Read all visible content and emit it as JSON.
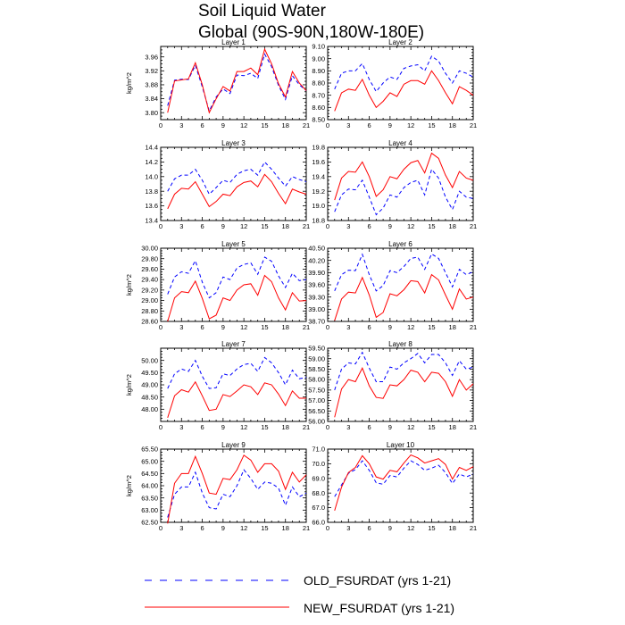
{
  "title_line1": "Soil Liquid Water",
  "title_line2": "Global (90S-90N,180W-180E)",
  "legend": [
    {
      "label": "OLD_FSURDAT (yrs 1-21)",
      "color": "#0000ff",
      "dashed": true
    },
    {
      "label": "NEW_FSURDAT (yrs 1-21)",
      "color": "#ff0000",
      "dashed": false
    }
  ],
  "chart_data": [
    {
      "type": "line",
      "title": "Layer 1",
      "ylabel": "kg/m^2",
      "xlim": [
        0,
        21
      ],
      "ylim": [
        3.78,
        3.99
      ],
      "xticks": [
        "0",
        "3",
        "6",
        "9",
        "12",
        "15",
        "18",
        "21"
      ],
      "yticks": [
        "3.80",
        "3.84",
        "3.88",
        "3.92",
        "3.96"
      ],
      "x": [
        1,
        2,
        3,
        4,
        5,
        6,
        7,
        8,
        9,
        10,
        11,
        12,
        13,
        14,
        15,
        16,
        17,
        18,
        19,
        20,
        21
      ],
      "series": [
        {
          "values": [
            3.82,
            3.893,
            3.896,
            3.895,
            3.936,
            3.874,
            3.805,
            3.845,
            3.868,
            3.855,
            3.908,
            3.906,
            3.913,
            3.898,
            3.968,
            3.932,
            3.878,
            3.838,
            3.906,
            3.88,
            3.863
          ]
        },
        {
          "values": [
            3.8,
            3.891,
            3.894,
            3.897,
            3.943,
            3.88,
            3.8,
            3.84,
            3.875,
            3.862,
            3.918,
            3.918,
            3.928,
            3.909,
            3.982,
            3.94,
            3.883,
            3.845,
            3.918,
            3.885,
            3.863
          ]
        }
      ]
    },
    {
      "type": "line",
      "title": "Layer 2",
      "ylabel": "",
      "xlim": [
        0,
        21
      ],
      "ylim": [
        8.5,
        9.1
      ],
      "xticks": [
        "0",
        "3",
        "6",
        "9",
        "12",
        "15",
        "18",
        "21"
      ],
      "yticks": [
        "8.50",
        "8.60",
        "8.70",
        "8.80",
        "8.90",
        "9.00",
        "9.10"
      ],
      "x": [
        1,
        2,
        3,
        4,
        5,
        6,
        7,
        8,
        9,
        10,
        11,
        12,
        13,
        14,
        15,
        16,
        17,
        18,
        19,
        20,
        21
      ],
      "series": [
        {
          "values": [
            8.75,
            8.88,
            8.9,
            8.9,
            8.96,
            8.83,
            8.73,
            8.8,
            8.85,
            8.83,
            8.92,
            8.94,
            8.95,
            8.9,
            9.02,
            8.98,
            8.88,
            8.8,
            8.9,
            8.88,
            8.85
          ]
        },
        {
          "values": [
            8.57,
            8.72,
            8.75,
            8.74,
            8.83,
            8.7,
            8.6,
            8.65,
            8.72,
            8.69,
            8.79,
            8.82,
            8.82,
            8.79,
            8.9,
            8.82,
            8.72,
            8.63,
            8.77,
            8.74,
            8.7
          ]
        }
      ]
    },
    {
      "type": "line",
      "title": "Layer 3",
      "ylabel": "",
      "xlim": [
        0,
        21
      ],
      "ylim": [
        13.4,
        14.4
      ],
      "xticks": [
        "0",
        "3",
        "6",
        "9",
        "12",
        "15",
        "18",
        "21"
      ],
      "yticks": [
        "13.4",
        "13.6",
        "13.8",
        "14.0",
        "14.2",
        "14.4"
      ],
      "x": [
        1,
        2,
        3,
        4,
        5,
        6,
        7,
        8,
        9,
        10,
        11,
        12,
        13,
        14,
        15,
        16,
        17,
        18,
        19,
        20,
        21
      ],
      "series": [
        {
          "values": [
            13.8,
            13.97,
            14.02,
            14.02,
            14.1,
            13.95,
            13.76,
            13.85,
            13.95,
            13.92,
            14.03,
            14.08,
            14.1,
            14.02,
            14.2,
            14.1,
            13.98,
            13.87,
            14.0,
            13.96,
            13.93
          ]
        },
        {
          "values": [
            13.56,
            13.76,
            13.84,
            13.83,
            13.93,
            13.76,
            13.59,
            13.66,
            13.76,
            13.74,
            13.86,
            13.92,
            13.94,
            13.86,
            14.03,
            13.93,
            13.77,
            13.63,
            13.83,
            13.79,
            13.76
          ]
        }
      ]
    },
    {
      "type": "line",
      "title": "Layer 4",
      "ylabel": "",
      "xlim": [
        0,
        21
      ],
      "ylim": [
        18.8,
        19.8
      ],
      "xticks": [
        "0",
        "3",
        "6",
        "9",
        "12",
        "15",
        "18",
        "21"
      ],
      "yticks": [
        "18.8",
        "19.0",
        "19.2",
        "19.4",
        "19.6",
        "19.8"
      ],
      "x": [
        1,
        2,
        3,
        4,
        5,
        6,
        7,
        8,
        9,
        10,
        11,
        12,
        13,
        14,
        15,
        16,
        17,
        18,
        19,
        20,
        21
      ],
      "series": [
        {
          "values": [
            18.92,
            19.15,
            19.23,
            19.22,
            19.35,
            19.12,
            18.88,
            18.97,
            19.15,
            19.12,
            19.25,
            19.32,
            19.35,
            19.15,
            19.5,
            19.38,
            19.12,
            18.95,
            19.2,
            19.12,
            19.1
          ]
        },
        {
          "values": [
            19.08,
            19.38,
            19.47,
            19.46,
            19.6,
            19.4,
            19.13,
            19.22,
            19.4,
            19.37,
            19.5,
            19.59,
            19.62,
            19.45,
            19.72,
            19.65,
            19.42,
            19.25,
            19.47,
            19.38,
            19.35
          ]
        }
      ]
    },
    {
      "type": "line",
      "title": "Layer 5",
      "ylabel": "kg/m^2",
      "xlim": [
        0,
        21
      ],
      "ylim": [
        28.6,
        30.0
      ],
      "xticks": [
        "0",
        "3",
        "6",
        "9",
        "12",
        "15",
        "18",
        "21"
      ],
      "yticks": [
        "28.60",
        "28.80",
        "29.00",
        "29.20",
        "29.40",
        "29.60",
        "29.80",
        "30.00"
      ],
      "x": [
        1,
        2,
        3,
        4,
        5,
        6,
        7,
        8,
        9,
        10,
        11,
        12,
        13,
        14,
        15,
        16,
        17,
        18,
        19,
        20,
        21
      ],
      "series": [
        {
          "values": [
            29.12,
            29.45,
            29.55,
            29.52,
            29.76,
            29.35,
            29.05,
            29.15,
            29.45,
            29.4,
            29.62,
            29.69,
            29.72,
            29.5,
            29.83,
            29.75,
            29.47,
            29.25,
            29.52,
            29.38,
            29.4
          ]
        },
        {
          "values": [
            28.6,
            29.05,
            29.17,
            29.15,
            29.37,
            29.04,
            28.65,
            28.72,
            29.05,
            29.0,
            29.2,
            29.3,
            29.32,
            29.1,
            29.48,
            29.36,
            29.05,
            28.82,
            29.15,
            28.99,
            29.0
          ]
        }
      ]
    },
    {
      "type": "line",
      "title": "Layer 6",
      "ylabel": "",
      "xlim": [
        0,
        21
      ],
      "ylim": [
        38.7,
        40.5
      ],
      "xticks": [
        "0",
        "3",
        "6",
        "9",
        "12",
        "15",
        "18",
        "21"
      ],
      "yticks": [
        "38.70",
        "39.00",
        "39.30",
        "39.60",
        "39.90",
        "40.20",
        "40.50"
      ],
      "x": [
        1,
        2,
        3,
        4,
        5,
        6,
        7,
        8,
        9,
        10,
        11,
        12,
        13,
        14,
        15,
        16,
        17,
        18,
        19,
        20,
        21
      ],
      "series": [
        {
          "values": [
            39.45,
            39.85,
            39.96,
            39.95,
            40.35,
            39.85,
            39.45,
            39.58,
            39.95,
            39.9,
            40.05,
            40.25,
            40.28,
            39.98,
            40.36,
            40.25,
            39.9,
            39.55,
            39.98,
            39.85,
            39.92
          ]
        },
        {
          "values": [
            38.72,
            39.25,
            39.42,
            39.4,
            39.78,
            39.35,
            38.8,
            38.92,
            39.38,
            39.33,
            39.48,
            39.7,
            39.68,
            39.4,
            39.85,
            39.72,
            39.35,
            39.0,
            39.5,
            39.25,
            39.3
          ]
        }
      ]
    },
    {
      "type": "line",
      "title": "Layer 7",
      "ylabel": "kg/m^2",
      "xlim": [
        0,
        21
      ],
      "ylim": [
        47.5,
        50.5
      ],
      "xticks": [
        "0",
        "3",
        "6",
        "9",
        "12",
        "15",
        "18",
        "21"
      ],
      "yticks": [
        "48.00",
        "48.50",
        "49.00",
        "49.50",
        "50.00"
      ],
      "x": [
        1,
        2,
        3,
        4,
        5,
        6,
        7,
        8,
        9,
        10,
        11,
        12,
        13,
        14,
        15,
        16,
        17,
        18,
        19,
        20,
        21
      ],
      "series": [
        {
          "values": [
            48.85,
            49.45,
            49.65,
            49.55,
            50.0,
            49.35,
            48.85,
            48.88,
            49.45,
            49.38,
            49.65,
            49.83,
            49.88,
            49.55,
            50.12,
            49.9,
            49.5,
            49.0,
            49.6,
            49.25,
            49.3
          ]
        },
        {
          "values": [
            47.65,
            48.55,
            48.8,
            48.7,
            49.12,
            48.55,
            47.95,
            48.0,
            48.6,
            48.52,
            48.75,
            49.0,
            48.92,
            48.6,
            49.08,
            49.0,
            48.62,
            48.15,
            48.75,
            48.45,
            48.45
          ]
        }
      ]
    },
    {
      "type": "line",
      "title": "Layer 8",
      "ylabel": "",
      "xlim": [
        0,
        21
      ],
      "ylim": [
        56.0,
        59.5
      ],
      "xticks": [
        "0",
        "3",
        "6",
        "9",
        "12",
        "15",
        "18",
        "21"
      ],
      "yticks": [
        "56.00",
        "56.50",
        "57.00",
        "57.50",
        "58.00",
        "58.50",
        "59.00",
        "59.50"
      ],
      "x": [
        1,
        2,
        3,
        4,
        5,
        6,
        7,
        8,
        9,
        10,
        11,
        12,
        13,
        14,
        15,
        16,
        17,
        18,
        19,
        20,
        21
      ],
      "series": [
        {
          "values": [
            57.5,
            58.5,
            58.8,
            58.75,
            59.3,
            58.55,
            57.9,
            57.9,
            58.6,
            58.5,
            58.8,
            59.0,
            59.25,
            58.8,
            59.2,
            59.2,
            58.8,
            58.2,
            58.9,
            58.5,
            58.6
          ]
        },
        {
          "values": [
            56.2,
            57.55,
            58.0,
            57.9,
            58.55,
            57.7,
            57.15,
            57.1,
            57.75,
            57.7,
            58.0,
            58.45,
            58.35,
            57.9,
            58.35,
            58.3,
            57.9,
            57.2,
            58.0,
            57.5,
            57.8
          ]
        }
      ]
    },
    {
      "type": "line",
      "title": "Layer 9",
      "ylabel": "kg/m^2",
      "xlim": [
        0,
        21
      ],
      "ylim": [
        62.5,
        65.5
      ],
      "xticks": [
        "0",
        "3",
        "6",
        "9",
        "12",
        "15",
        "18",
        "21"
      ],
      "yticks": [
        "62.50",
        "63.00",
        "63.50",
        "64.00",
        "64.50",
        "65.00",
        "65.50"
      ],
      "x": [
        1,
        2,
        3,
        4,
        5,
        6,
        7,
        8,
        9,
        10,
        11,
        12,
        13,
        14,
        15,
        16,
        17,
        18,
        19,
        20,
        21
      ],
      "series": [
        {
          "values": [
            62.7,
            63.65,
            63.95,
            63.95,
            64.55,
            63.7,
            63.1,
            63.05,
            63.65,
            63.55,
            64.0,
            64.65,
            64.3,
            63.85,
            64.15,
            64.1,
            63.9,
            63.2,
            63.95,
            63.55,
            63.7
          ]
        },
        {
          "values": [
            62.45,
            64.1,
            64.5,
            64.5,
            65.2,
            64.5,
            63.7,
            63.65,
            64.3,
            64.25,
            64.65,
            65.25,
            65.05,
            64.55,
            64.9,
            64.9,
            64.6,
            63.85,
            64.55,
            64.15,
            64.45
          ]
        }
      ]
    },
    {
      "type": "line",
      "title": "Layer 10",
      "ylabel": "",
      "xlim": [
        0,
        21
      ],
      "ylim": [
        66.0,
        71.0
      ],
      "xticks": [
        "0",
        "3",
        "6",
        "9",
        "12",
        "15",
        "18",
        "21"
      ],
      "yticks": [
        "66.0",
        "67.0",
        "68.0",
        "69.0",
        "70.0",
        "71.0"
      ],
      "x": [
        1,
        2,
        3,
        4,
        5,
        6,
        7,
        8,
        9,
        10,
        11,
        12,
        13,
        14,
        15,
        16,
        17,
        18,
        19,
        20,
        21
      ],
      "series": [
        {
          "values": [
            67.75,
            68.55,
            69.35,
            69.6,
            70.2,
            69.55,
            68.7,
            68.6,
            69.2,
            69.1,
            69.7,
            70.2,
            69.95,
            69.55,
            69.7,
            69.9,
            69.4,
            68.65,
            69.3,
            69.1,
            69.3
          ]
        },
        {
          "values": [
            66.8,
            68.4,
            69.4,
            69.75,
            70.55,
            70.0,
            69.1,
            68.95,
            69.55,
            69.45,
            70.05,
            70.6,
            70.4,
            70.05,
            70.2,
            70.35,
            69.95,
            68.95,
            69.75,
            69.55,
            69.8
          ]
        }
      ]
    }
  ]
}
